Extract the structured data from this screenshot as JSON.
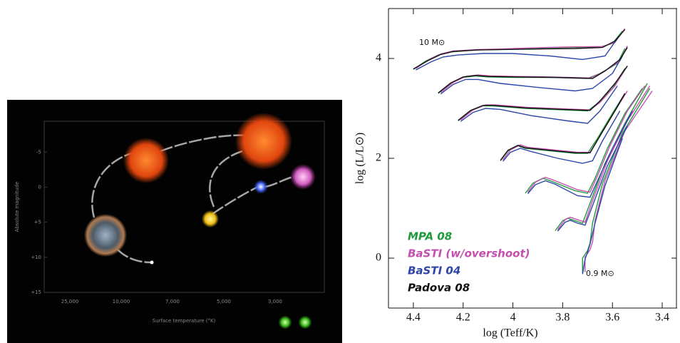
{
  "chart_data": [
    {
      "type": "diagram",
      "ylabel": "Absolute magnitude",
      "xlabel": "Surface temperature (°K)",
      "ylim": [
        -9.4,
        15
      ],
      "yticks": [
        {
          "value": -5,
          "label": "-5"
        },
        0,
        {
          "value": 5,
          "label": "+5"
        },
        {
          "value": 10,
          "label": "+10"
        },
        {
          "value": 15,
          "label": "+15"
        }
      ],
      "categories": [
        "25,000",
        "10,000",
        "7,000",
        "5,000",
        "3,000"
      ]
    },
    {
      "type": "line",
      "xlabel": "log (Teff/K)",
      "ylabel": "log (L/L⊙)",
      "xlim": [
        4.5,
        3.34
      ],
      "ylim": [
        -1,
        5
      ],
      "xticks": [
        4.4,
        4.2,
        4,
        3.8,
        3.6,
        3.4
      ],
      "yticks": [
        0,
        2,
        4
      ],
      "annotations": [
        "10 M⊙",
        "0.9 M⊙"
      ],
      "series": [
        {
          "name": "MPA 08",
          "color": "#1e9a3c",
          "tracks": [
            {
              "x": [
                4.4,
                4.35,
                4.3,
                4.25,
                4.15,
                4.05,
                3.95,
                3.8,
                3.65,
                3.6,
                3.56
              ],
              "values": [
                3.78,
                3.95,
                4.07,
                4.13,
                4.17,
                4.18,
                4.2,
                4.22,
                4.23,
                4.3,
                4.55
              ]
            },
            {
              "x": [
                4.3,
                4.25,
                4.2,
                4.15,
                4.1,
                4.0,
                3.85,
                3.7,
                3.65,
                3.58,
                3.55
              ],
              "values": [
                3.3,
                3.5,
                3.62,
                3.65,
                3.63,
                3.62,
                3.62,
                3.6,
                3.7,
                3.9,
                4.2
              ]
            },
            {
              "x": [
                4.22,
                4.17,
                4.12,
                4.08,
                3.95,
                3.8,
                3.7,
                3.66,
                3.6,
                3.55
              ],
              "values": [
                2.75,
                2.95,
                3.05,
                3.05,
                3.0,
                2.97,
                2.95,
                3.1,
                3.4,
                3.8
              ]
            },
            {
              "x": [
                4.05,
                4.02,
                3.98,
                3.95,
                3.85,
                3.75,
                3.7,
                3.66,
                3.6,
                3.55
              ],
              "values": [
                1.95,
                2.15,
                2.25,
                2.2,
                2.15,
                2.1,
                2.1,
                2.4,
                2.9,
                3.3
              ]
            },
            {
              "x": [
                3.95,
                3.92,
                3.88,
                3.85,
                3.75,
                3.7,
                3.67,
                3.62,
                3.55,
                3.48
              ],
              "values": [
                1.3,
                1.5,
                1.6,
                1.55,
                1.35,
                1.3,
                1.6,
                2.2,
                2.9,
                3.4
              ]
            },
            {
              "x": [
                3.83,
                3.8,
                3.78,
                3.75,
                3.72,
                3.69,
                3.63,
                3.55,
                3.46
              ],
              "values": [
                0.55,
                0.75,
                0.8,
                0.75,
                0.7,
                1.1,
                1.9,
                2.7,
                3.5
              ]
            },
            {
              "x": [
                3.72,
                3.72,
                3.7,
                3.69,
                3.68,
                3.64,
                3.56,
                3.45
              ],
              "values": [
                -0.3,
                0.0,
                0.15,
                0.3,
                0.7,
                1.5,
                2.5,
                3.4
              ]
            }
          ]
        },
        {
          "name": "BaSTI (w/overshoot)",
          "color": "#c54fb0",
          "tracks": [
            {
              "x": [
                4.39,
                4.34,
                4.29,
                4.24,
                4.14,
                4.04,
                3.94,
                3.79,
                3.64,
                3.59,
                3.55
              ],
              "values": [
                3.8,
                3.97,
                4.09,
                4.15,
                4.18,
                4.19,
                4.21,
                4.23,
                4.24,
                4.32,
                4.6
              ]
            },
            {
              "x": [
                4.29,
                4.24,
                4.19,
                4.14,
                4.09,
                3.99,
                3.84,
                3.69,
                3.64,
                3.57,
                3.54
              ],
              "values": [
                3.32,
                3.52,
                3.64,
                3.67,
                3.65,
                3.64,
                3.63,
                3.61,
                3.72,
                3.95,
                4.25
              ]
            },
            {
              "x": [
                4.21,
                4.16,
                4.11,
                4.07,
                3.94,
                3.79,
                3.69,
                3.65,
                3.59,
                3.54
              ],
              "values": [
                2.77,
                2.97,
                3.07,
                3.07,
                3.02,
                2.99,
                2.97,
                3.12,
                3.45,
                3.85
              ]
            },
            {
              "x": [
                4.04,
                4.01,
                3.97,
                3.94,
                3.84,
                3.74,
                3.69,
                3.65,
                3.59,
                3.54
              ],
              "values": [
                1.97,
                2.17,
                2.27,
                2.22,
                2.17,
                2.12,
                2.12,
                2.45,
                2.95,
                3.35
              ]
            },
            {
              "x": [
                3.94,
                3.91,
                3.87,
                3.84,
                3.74,
                3.69,
                3.66,
                3.61,
                3.54,
                3.47
              ],
              "values": [
                1.32,
                1.52,
                1.62,
                1.57,
                1.37,
                1.32,
                1.65,
                2.25,
                2.95,
                3.45
              ]
            },
            {
              "x": [
                3.82,
                3.79,
                3.77,
                3.74,
                3.71,
                3.68,
                3.62,
                3.54,
                3.45
              ],
              "values": [
                0.57,
                0.77,
                0.82,
                0.77,
                0.72,
                1.15,
                1.95,
                2.75,
                3.45
              ]
            },
            {
              "x": [
                3.71,
                3.71,
                3.69,
                3.68,
                3.67,
                3.63,
                3.55,
                3.44
              ],
              "values": [
                -0.28,
                0.02,
                0.17,
                0.32,
                0.75,
                1.55,
                2.55,
                3.35
              ]
            }
          ]
        },
        {
          "name": "BaSTI 04",
          "color": "#2c46a8",
          "tracks": [
            {
              "x": [
                4.39,
                4.33,
                4.28,
                4.22,
                4.12,
                4.0,
                3.85,
                3.72,
                3.63,
                3.58
              ],
              "values": [
                3.77,
                3.93,
                4.03,
                4.07,
                4.1,
                4.1,
                4.05,
                3.98,
                4.05,
                4.4
              ]
            },
            {
              "x": [
                4.29,
                4.24,
                4.19,
                4.14,
                4.05,
                3.9,
                3.75,
                3.68,
                3.6,
                3.56
              ],
              "values": [
                3.29,
                3.48,
                3.58,
                3.58,
                3.5,
                3.42,
                3.35,
                3.4,
                3.7,
                4.05
              ]
            },
            {
              "x": [
                4.21,
                4.16,
                4.11,
                4.05,
                3.92,
                3.78,
                3.7,
                3.65,
                3.58
              ],
              "values": [
                2.74,
                2.92,
                3.0,
                2.98,
                2.85,
                2.75,
                2.7,
                2.95,
                3.45
              ]
            },
            {
              "x": [
                4.04,
                4.01,
                3.97,
                3.93,
                3.82,
                3.72,
                3.68,
                3.64,
                3.57
              ],
              "values": [
                1.94,
                2.12,
                2.2,
                2.14,
                2.0,
                1.9,
                1.95,
                2.35,
                2.95
              ]
            },
            {
              "x": [
                3.94,
                3.91,
                3.87,
                3.83,
                3.74,
                3.69,
                3.66,
                3.6,
                3.52
              ],
              "values": [
                1.29,
                1.47,
                1.55,
                1.48,
                1.25,
                1.22,
                1.55,
                2.2,
                2.95
              ]
            },
            {
              "x": [
                3.82,
                3.79,
                3.77,
                3.74,
                3.71,
                3.68,
                3.62,
                3.54
              ],
              "values": [
                0.54,
                0.72,
                0.76,
                0.7,
                0.66,
                1.05,
                1.85,
                2.65
              ]
            },
            {
              "x": [
                3.72,
                3.71,
                3.7,
                3.69,
                3.67,
                3.63,
                3.56
              ],
              "values": [
                -0.32,
                -0.02,
                0.12,
                0.28,
                0.7,
                1.45,
                2.4
              ]
            }
          ]
        },
        {
          "name": "Padova 08",
          "color": "#111111",
          "tracks": [
            {
              "x": [
                4.4,
                4.34,
                4.29,
                4.24,
                4.14,
                4.04,
                3.9,
                3.75,
                3.64,
                3.59,
                3.55
              ],
              "values": [
                3.79,
                3.96,
                4.08,
                4.14,
                4.17,
                4.18,
                4.19,
                4.2,
                4.22,
                4.35,
                4.58
              ]
            },
            {
              "x": [
                4.3,
                4.25,
                4.2,
                4.15,
                4.1,
                3.98,
                3.83,
                3.68,
                3.63,
                3.57,
                3.54
              ],
              "values": [
                3.31,
                3.51,
                3.63,
                3.66,
                3.64,
                3.63,
                3.62,
                3.6,
                3.75,
                3.98,
                4.22
              ]
            },
            {
              "x": [
                4.22,
                4.17,
                4.12,
                4.08,
                3.95,
                3.8,
                3.69,
                3.65,
                3.59,
                3.54
              ],
              "values": [
                2.76,
                2.96,
                3.06,
                3.06,
                3.01,
                2.98,
                2.96,
                3.15,
                3.5,
                3.85
              ]
            },
            {
              "x": [
                4.05,
                4.02,
                3.98,
                3.95,
                3.85,
                3.75,
                3.69,
                3.65,
                3.59,
                3.55
              ],
              "values": [
                1.96,
                2.16,
                2.26,
                2.21,
                2.16,
                2.11,
                2.11,
                2.45,
                2.95,
                3.3
              ]
            }
          ]
        }
      ]
    }
  ]
}
